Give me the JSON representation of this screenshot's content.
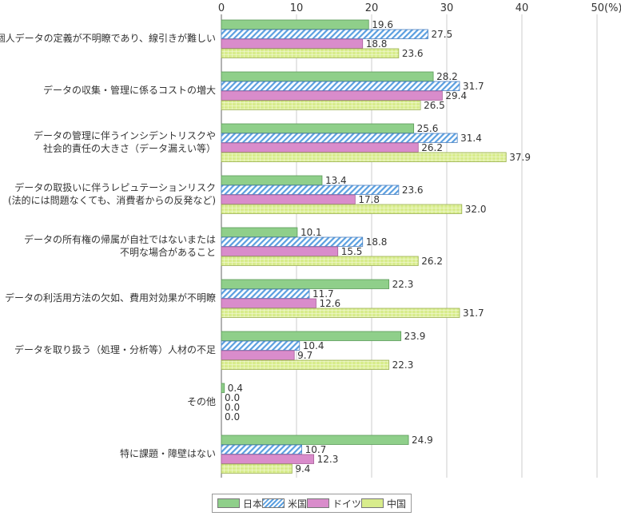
{
  "chart_data": {
    "type": "bar",
    "orientation": "horizontal",
    "unit": "(%)",
    "xlim": [
      0,
      50
    ],
    "ticks": [
      "0",
      "10",
      "20",
      "30",
      "40",
      "50(%)"
    ],
    "grid": true,
    "legend_position": "bottom",
    "categories": [
      "個人データの定義が不明瞭であり、線引きが難しい",
      "データの収集・管理に係るコストの増大",
      "データの管理に伴うインシデントリスクや\n社会的責任の大きさ（データ漏えい等）",
      "データの取扱いに伴うレピュテーションリスク\n(法的には問題なくても、消費者からの反発など)",
      "データの所有権の帰属が自社ではないまたは\n不明な場合があること",
      "データの利活用方法の欠如、費用対効果が不明瞭",
      "データを取り扱う（処理・分析等）人材の不足",
      "その他",
      "特に課題・障壁はない"
    ],
    "series": [
      {
        "name": "日本",
        "color": "#8fcf8a",
        "pattern": "solid",
        "values": [
          19.6,
          28.2,
          25.6,
          13.4,
          10.1,
          22.3,
          23.9,
          0.4,
          24.9
        ]
      },
      {
        "name": "米国",
        "color": "#5a9fe0",
        "pattern": "diagonal-hatch",
        "values": [
          27.5,
          31.7,
          31.4,
          23.6,
          18.8,
          11.7,
          10.4,
          0.0,
          10.7
        ]
      },
      {
        "name": "ドイツ",
        "color": "#d98ccb",
        "pattern": "solid",
        "values": [
          18.8,
          29.4,
          26.2,
          17.8,
          15.5,
          12.6,
          9.7,
          0.0,
          12.3
        ]
      },
      {
        "name": "中国",
        "color": "#d8ec8c",
        "pattern": "grid",
        "values": [
          23.6,
          26.5,
          37.9,
          32.0,
          26.2,
          31.7,
          22.3,
          0.0,
          9.4
        ]
      }
    ]
  }
}
